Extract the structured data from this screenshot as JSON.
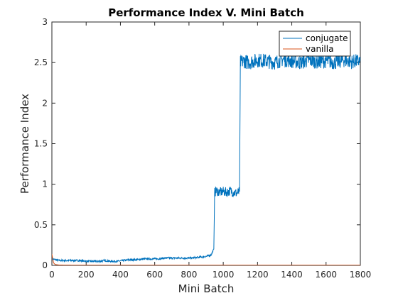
{
  "chart_data": {
    "type": "line",
    "title": "Performance Index V. Mini Batch",
    "xlabel": "Mini Batch",
    "ylabel": "Performance Index",
    "xlim": [
      0,
      1800
    ],
    "ylim": [
      0,
      3
    ],
    "xticks": [
      0,
      200,
      400,
      600,
      800,
      1000,
      1200,
      1400,
      1600,
      1800
    ],
    "yticks": [
      0,
      0.5,
      1,
      1.5,
      2,
      2.5,
      3
    ],
    "xtick_labels": [
      "0",
      "200",
      "400",
      "600",
      "800",
      "1000",
      "1200",
      "1400",
      "1600",
      "1800"
    ],
    "ytick_labels": [
      "0",
      "0.5",
      "1",
      "1.5",
      "2",
      "2.5",
      "3"
    ],
    "grid": false,
    "legend_position": "top-right",
    "series": [
      {
        "name": "conjugate",
        "color": "#0072BD",
        "x": [
          0,
          20,
          40,
          80,
          120,
          160,
          200,
          240,
          280,
          310,
          340,
          380,
          420,
          460,
          500,
          540,
          580,
          620,
          660,
          700,
          740,
          780,
          820,
          860,
          900,
          930,
          945,
          950,
          960,
          980,
          1000,
          1020,
          1040,
          1060,
          1080,
          1095,
          1100,
          1120,
          1150,
          1200,
          1250,
          1300,
          1350,
          1400,
          1450,
          1500,
          1550,
          1600,
          1650,
          1700,
          1750,
          1800
        ],
        "y": [
          0.08,
          0.07,
          0.06,
          0.06,
          0.06,
          0.06,
          0.05,
          0.05,
          0.05,
          0.06,
          0.05,
          0.05,
          0.06,
          0.07,
          0.07,
          0.08,
          0.08,
          0.08,
          0.09,
          0.09,
          0.09,
          0.09,
          0.09,
          0.1,
          0.11,
          0.13,
          0.2,
          0.9,
          0.92,
          0.9,
          0.91,
          0.9,
          0.92,
          0.9,
          0.89,
          0.91,
          2.5,
          2.52,
          2.5,
          2.53,
          2.52,
          2.5,
          2.54,
          2.52,
          2.5,
          2.53,
          2.51,
          2.52,
          2.5,
          2.53,
          2.51,
          2.52
        ]
      },
      {
        "name": "vanilla",
        "color": "#D95319",
        "x": [
          0,
          5,
          10,
          20,
          40,
          80,
          200,
          600,
          1000,
          1400,
          1800
        ],
        "y": [
          0.14,
          0.08,
          0.03,
          0.01,
          0.005,
          0.003,
          0.002,
          0.002,
          0.002,
          0.002,
          0.002
        ]
      }
    ]
  }
}
